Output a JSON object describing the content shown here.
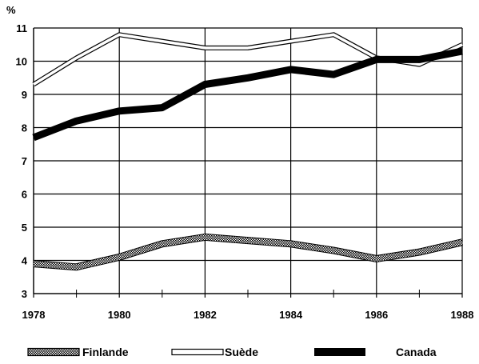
{
  "chart_data": {
    "type": "line",
    "title": "",
    "xlabel": "",
    "ylabel": "%",
    "x": [
      1978,
      1979,
      1980,
      1981,
      1982,
      1983,
      1984,
      1985,
      1986,
      1987,
      1988
    ],
    "xticks": [
      "1978",
      "1980",
      "1982",
      "1984",
      "1986",
      "1988"
    ],
    "yticks": [
      "3",
      "4",
      "5",
      "6",
      "7",
      "8",
      "9",
      "10",
      "11"
    ],
    "xlim": [
      1978,
      1988
    ],
    "ylim": [
      3,
      11
    ],
    "grid": "horizontal",
    "legend_position": "bottom",
    "series": [
      {
        "name": "Finlande",
        "style": "hatched",
        "values": [
          3.9,
          3.8,
          4.1,
          4.5,
          4.7,
          4.6,
          4.5,
          4.3,
          4.05,
          4.25,
          4.55
        ]
      },
      {
        "name": "Suède",
        "style": "outline",
        "values": [
          9.3,
          10.1,
          10.8,
          10.6,
          10.4,
          10.4,
          10.6,
          10.8,
          10.1,
          9.9,
          10.5
        ]
      },
      {
        "name": "Canada",
        "style": "solid",
        "values": [
          7.7,
          8.2,
          8.5,
          8.6,
          9.3,
          9.5,
          9.75,
          9.6,
          10.05,
          10.05,
          10.3
        ]
      }
    ]
  }
}
